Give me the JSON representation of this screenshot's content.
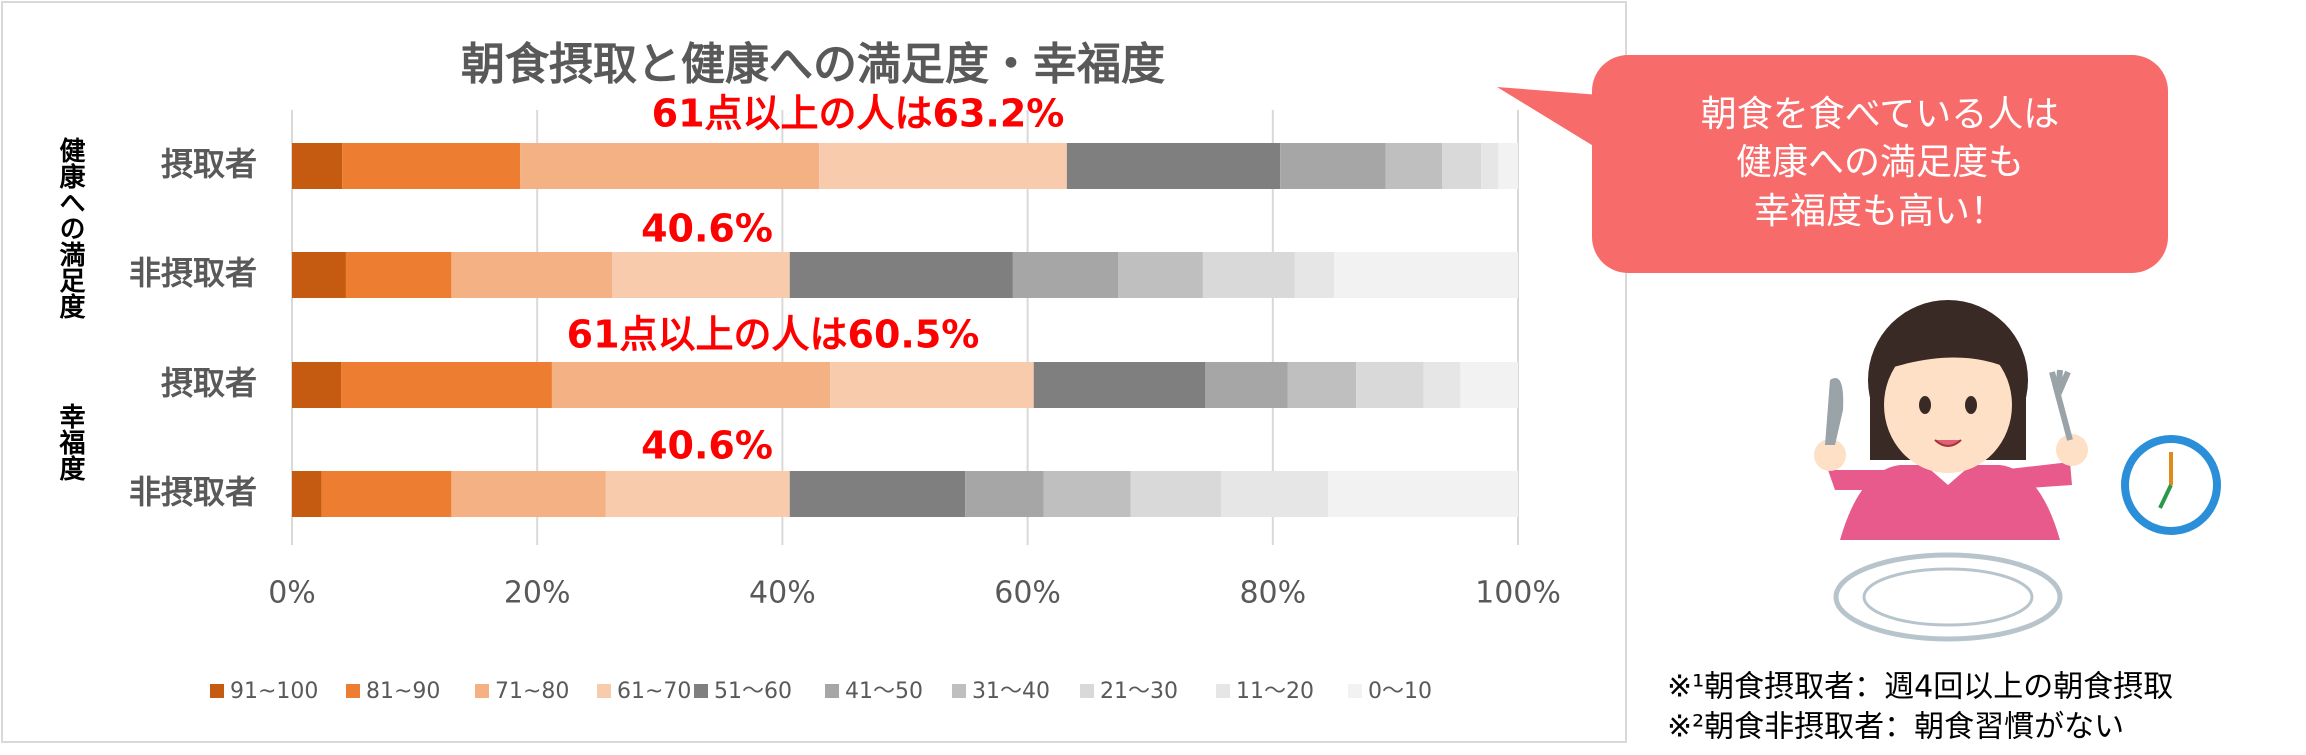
{
  "chart_data": {
    "type": "stacked-bar-horizontal",
    "title": "朝食摂取と健康への満足度・幸福度",
    "groups": [
      "健康への満足度",
      "幸福度"
    ],
    "categories": [
      "摂取者",
      "非摂取者",
      "摂取者",
      "非摂取者"
    ],
    "series": [
      {
        "name": "91~100",
        "color": "#c55a11",
        "values": [
          4.1,
          4.4,
          4.0,
          2.4
        ]
      },
      {
        "name": "81~90",
        "color": "#ed7d31",
        "values": [
          14.5,
          8.6,
          17.2,
          10.6
        ]
      },
      {
        "name": "71~80",
        "color": "#f4b183",
        "values": [
          24.4,
          13.1,
          22.7,
          12.6
        ]
      },
      {
        "name": "61~70",
        "color": "#f8cbad",
        "values": [
          20.2,
          14.5,
          16.6,
          15.0
        ]
      },
      {
        "name": "51～60",
        "color": "#7f7f7f",
        "values": [
          17.4,
          18.2,
          14.0,
          14.3
        ]
      },
      {
        "name": "41～50",
        "color": "#a6a6a6",
        "values": [
          8.6,
          8.6,
          6.7,
          6.4
        ]
      },
      {
        "name": "31～40",
        "color": "#bfbfbf",
        "values": [
          4.6,
          6.9,
          5.6,
          7.1
        ]
      },
      {
        "name": "21～30",
        "color": "#d9d9d9",
        "values": [
          3.2,
          7.5,
          5.5,
          7.4
        ]
      },
      {
        "name": "11～20",
        "color": "#e7e6e6",
        "values": [
          1.4,
          3.2,
          3.0,
          8.7
        ]
      },
      {
        "name": "0～10",
        "color": "#f2f2f2",
        "values": [
          1.6,
          15.0,
          4.7,
          15.5
        ]
      }
    ],
    "xlim": [
      0,
      100
    ],
    "xticks": [
      {
        "value": 0,
        "label": "0%"
      },
      {
        "value": 20,
        "label": "20%"
      },
      {
        "value": 40,
        "label": "40%"
      },
      {
        "value": 60,
        "label": "60%"
      },
      {
        "value": 80,
        "label": "80%"
      },
      {
        "value": 100,
        "label": "100%"
      }
    ],
    "grid": true,
    "annotations": [
      "61点以上の人は63.2%",
      "40.6%",
      "61点以上の人は60.5%",
      "40.6%"
    ]
  },
  "callout": {
    "lines": [
      "朝食を食べている人は",
      "健康への満足度も",
      "幸福度も高い！"
    ]
  },
  "footnotes": [
    "※¹朝食摂取者：週4回以上の朝食摂取",
    "※²朝食非摂取者：朝食習慣がない"
  ]
}
